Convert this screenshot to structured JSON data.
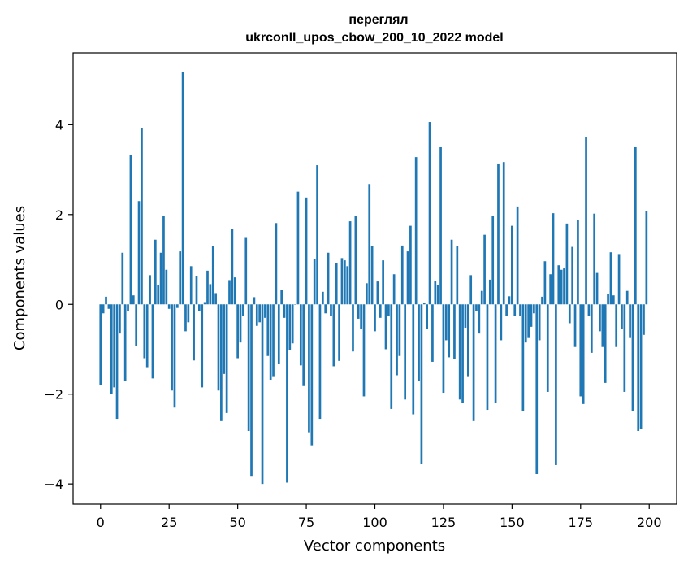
{
  "chart_data": {
    "type": "bar",
    "title_line1": "переглял",
    "title_line2": "ukrconll_upos_cbow_200_10_2022 model",
    "xlabel": "Vector components",
    "ylabel": "Components values",
    "xlim": [
      -10,
      210
    ],
    "ylim": [
      -4.45,
      5.6
    ],
    "xticks": [
      0,
      25,
      50,
      75,
      100,
      125,
      150,
      175,
      200
    ],
    "yticks": [
      -4,
      -2,
      0,
      2,
      4
    ],
    "ytick_labels": [
      "−4",
      "−2",
      "0",
      "2",
      "4"
    ],
    "bar_color": "#1f77b4",
    "grid": false,
    "values": [
      -1.8,
      -0.2,
      0.17,
      -0.1,
      -2.0,
      -1.85,
      -2.55,
      -0.65,
      1.15,
      -1.7,
      -0.15,
      3.33,
      0.2,
      -0.92,
      2.3,
      3.92,
      -1.2,
      -1.4,
      0.65,
      -1.65,
      1.44,
      0.44,
      1.15,
      1.97,
      0.77,
      -0.1,
      -1.92,
      -2.3,
      -0.08,
      1.18,
      5.18,
      -0.6,
      -0.4,
      0.85,
      -1.25,
      0.63,
      -0.15,
      -1.85,
      0.05,
      0.75,
      0.45,
      1.29,
      0.25,
      -1.92,
      -2.6,
      -1.55,
      -2.42,
      0.54,
      1.68,
      0.6,
      -1.2,
      -0.85,
      -0.25,
      1.48,
      -2.82,
      -3.82,
      0.16,
      -0.48,
      -0.4,
      -4.0,
      -0.3,
      -1.15,
      -1.68,
      -1.6,
      1.81,
      -1.33,
      0.32,
      -0.3,
      -3.97,
      -1.02,
      -0.87,
      0.0,
      2.51,
      -1.36,
      -1.82,
      2.38,
      -2.85,
      -3.14,
      1.01,
      3.1,
      -2.55,
      0.28,
      -0.2,
      1.15,
      -0.25,
      -1.38,
      0.92,
      -1.26,
      1.03,
      0.98,
      0.85,
      1.85,
      -1.05,
      1.96,
      -0.32,
      -0.55,
      -2.05,
      0.47,
      2.68,
      1.3,
      -0.6,
      0.51,
      -0.3,
      0.98,
      -1.0,
      -0.25,
      -2.33,
      0.67,
      -1.58,
      -1.15,
      1.31,
      -2.12,
      1.18,
      1.75,
      -2.45,
      3.28,
      -1.7,
      -3.55,
      0.04,
      -0.55,
      4.06,
      -1.28,
      0.52,
      0.43,
      3.5,
      -1.97,
      -0.8,
      -1.18,
      1.44,
      -1.22,
      1.3,
      -2.12,
      -2.2,
      -0.52,
      -1.6,
      0.65,
      -2.6,
      -0.15,
      -0.65,
      0.3,
      1.55,
      -2.35,
      0.55,
      1.96,
      -2.2,
      3.12,
      -0.8,
      3.17,
      -0.25,
      0.18,
      1.75,
      -0.25,
      2.18,
      -0.25,
      -2.38,
      -0.85,
      -0.75,
      -0.5,
      -0.2,
      -3.78,
      -0.8,
      0.17,
      0.96,
      -1.95,
      0.67,
      2.03,
      -3.58,
      0.87,
      0.77,
      0.8,
      1.8,
      -0.42,
      1.28,
      -0.95,
      1.88,
      -2.05,
      -2.22,
      3.72,
      -0.25,
      -1.08,
      2.02,
      0.7,
      -0.6,
      -0.95,
      -1.75,
      0.23,
      1.16,
      0.2,
      -0.95,
      1.12,
      -0.55,
      -1.95,
      0.3,
      -0.75,
      -2.38,
      3.5,
      -2.82,
      -2.78,
      -0.68,
      2.07
    ]
  }
}
